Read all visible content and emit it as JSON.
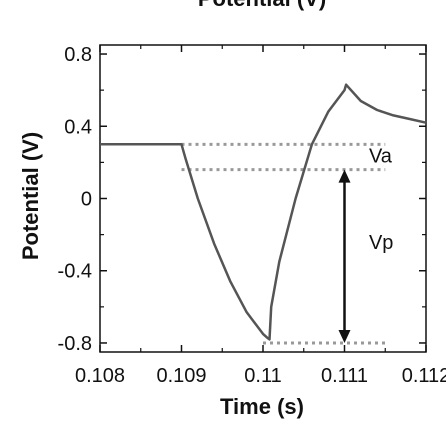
{
  "chart_data": {
    "type": "line",
    "title": "Potential (V)",
    "xlabel": "Time (s)",
    "ylabel": "Potential (V)",
    "xlim": [
      0.108,
      0.112
    ],
    "ylim": [
      -0.85,
      0.85
    ],
    "x_ticks": [
      0.108,
      0.109,
      0.11,
      0.111,
      0.112
    ],
    "x_tick_labels": [
      "0.108",
      "0.109",
      "0.11",
      "0.111",
      "0.112"
    ],
    "y_ticks": [
      -0.8,
      -0.4,
      0,
      0.4,
      0.8
    ],
    "y_tick_labels": [
      "-0.8",
      "-0.4",
      "0",
      "0.4",
      "0.8"
    ],
    "grid": false,
    "series": [
      {
        "color": "#555555",
        "x": [
          0.108,
          0.109,
          0.10905,
          0.1092,
          0.1094,
          0.1096,
          0.1098,
          0.11,
          0.11005,
          0.11008,
          0.1101,
          0.1102,
          0.1104,
          0.1106,
          0.1108,
          0.111,
          0.11102,
          0.1112,
          0.1114,
          0.1116,
          0.1118,
          0.112
        ],
        "y": [
          0.3,
          0.3,
          0.22,
          0.0,
          -0.25,
          -0.46,
          -0.63,
          -0.75,
          -0.77,
          -0.78,
          -0.6,
          -0.35,
          0.0,
          0.3,
          0.48,
          0.6,
          0.63,
          0.54,
          0.49,
          0.46,
          0.44,
          0.42
        ]
      }
    ],
    "reference_lines": [
      {
        "y": 0.3,
        "x_start": 0.109,
        "x_end": 0.1115,
        "style": "dotted",
        "color": "#999999"
      },
      {
        "y": 0.16,
        "x_start": 0.109,
        "x_end": 0.1115,
        "style": "dotted",
        "color": "#999999"
      },
      {
        "y": -0.8,
        "x_start": 0.11,
        "x_end": 0.1115,
        "style": "dotted",
        "color": "#999999"
      }
    ],
    "arrow": {
      "x": 0.111,
      "y_from": 0.16,
      "y_to": -0.8,
      "style": "double"
    },
    "annotations": [
      {
        "text": "Va",
        "x": 0.1113,
        "y": 0.2
      },
      {
        "text": "Vp",
        "x": 0.1113,
        "y": -0.28
      }
    ]
  }
}
